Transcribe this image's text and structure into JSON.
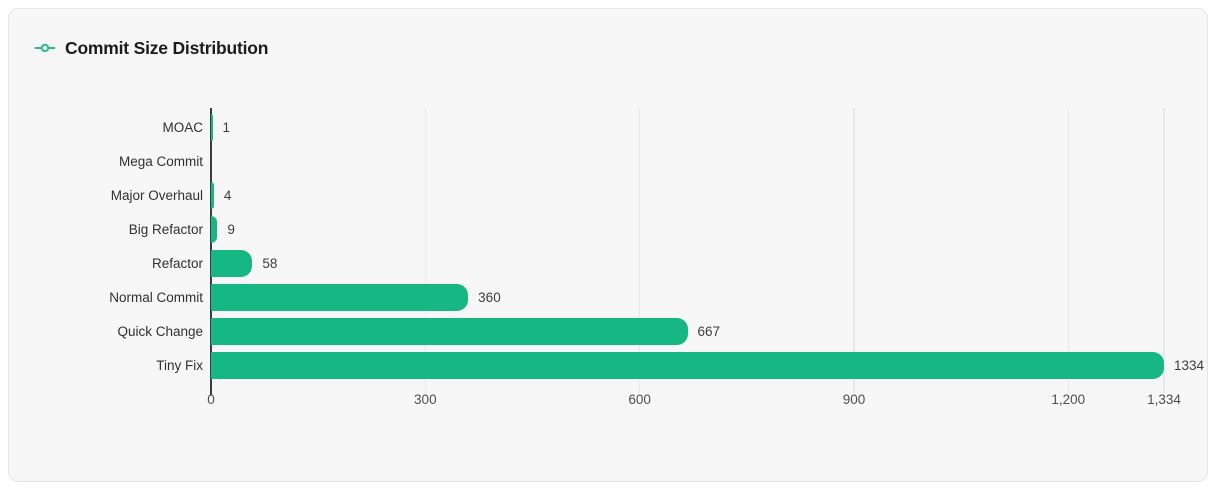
{
  "header": {
    "title": "Commit Size Distribution",
    "icon": "git-commit"
  },
  "chart_data": {
    "type": "bar",
    "orientation": "horizontal",
    "title": "Commit Size Distribution",
    "categories": [
      "MOAC",
      "Mega Commit",
      "Major Overhaul",
      "Big Refactor",
      "Refactor",
      "Normal Commit",
      "Quick Change",
      "Tiny Fix"
    ],
    "values": [
      1,
      0,
      4,
      9,
      58,
      360,
      667,
      1334
    ],
    "value_labels": [
      "1",
      "",
      "4",
      "9",
      "58",
      "360",
      "667",
      "1334"
    ],
    "xlim": [
      0,
      1334
    ],
    "x_ticks": [
      {
        "value": 0,
        "label": "0"
      },
      {
        "value": 300,
        "label": "300"
      },
      {
        "value": 600,
        "label": "600"
      },
      {
        "value": 900,
        "label": "900"
      },
      {
        "value": 1200,
        "label": "1,200"
      },
      {
        "value": 1334,
        "label": "1,334"
      }
    ],
    "grid": true,
    "legend": false,
    "bar_color": "#17b784"
  },
  "colors": {
    "accent_green": "#17b784",
    "icon_green": "#2ebd8c",
    "card_background": "#f7f7f8",
    "card_border": "#e6e6e9",
    "axis": "#3a3b40",
    "gridline": "#e9e9eb"
  }
}
